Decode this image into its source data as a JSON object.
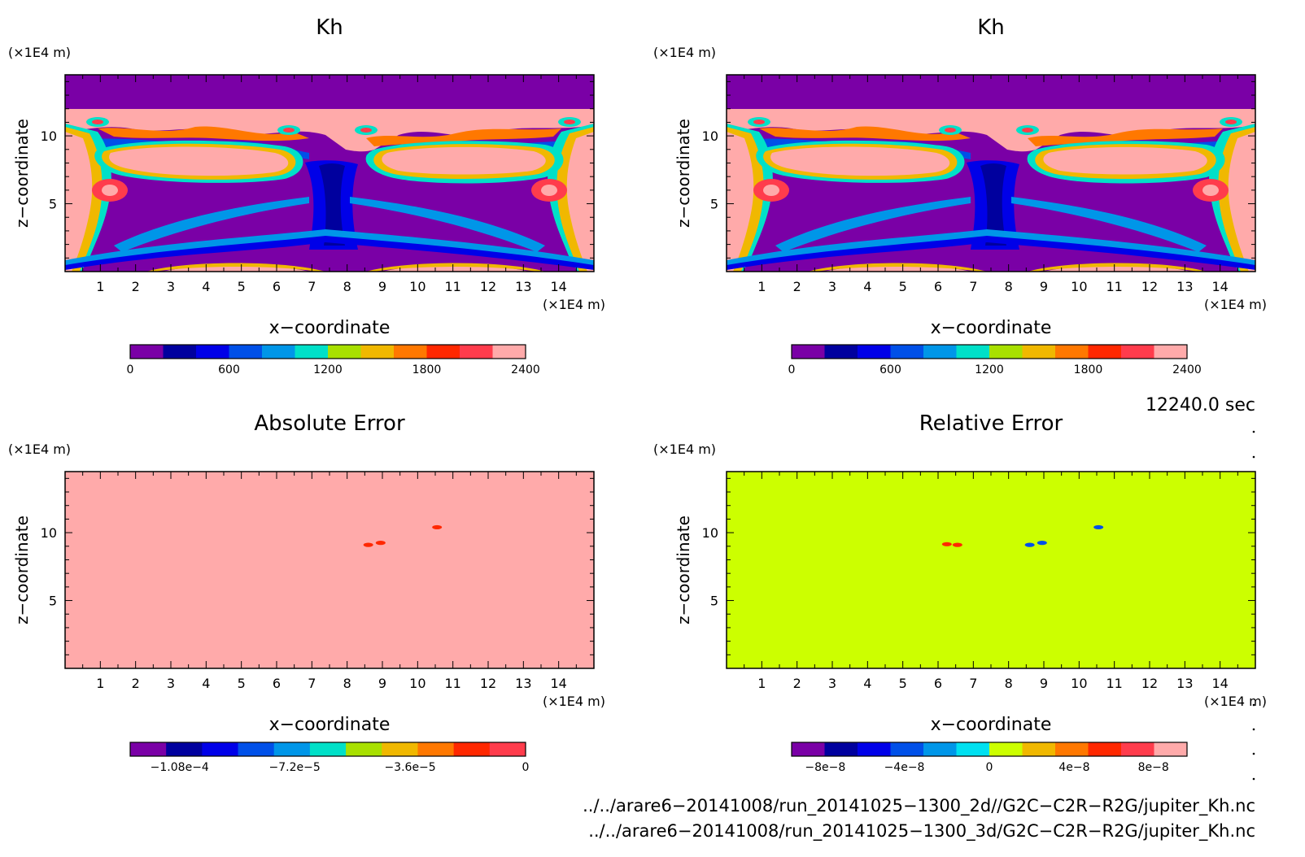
{
  "chart_data": [
    {
      "type": "heatmap",
      "title": "Kh",
      "xlabel": "x−coordinate",
      "ylabel": "z−coordinate",
      "x_unit": "(×1E4 m)",
      "y_unit": "(×1E4 m)",
      "xlim": [
        0,
        15
      ],
      "ylim": [
        0,
        14.5
      ],
      "xticks": [
        "1",
        "2",
        "3",
        "4",
        "5",
        "6",
        "7",
        "8",
        "9",
        "10",
        "11",
        "12",
        "13",
        "14"
      ],
      "yticks": [
        "5",
        "10"
      ],
      "colorbar": {
        "colors": [
          "#7a00a6",
          "#00009e",
          "#0000e8",
          "#0050e8",
          "#0096e8",
          "#00e0c8",
          "#a8e000",
          "#f0b800",
          "#ff7800",
          "#ff2800",
          "#ff3c4c",
          "#ffaaaa"
        ],
        "labels": [
          "0",
          "600",
          "1200",
          "1800",
          "2400"
        ]
      }
    },
    {
      "type": "heatmap",
      "title": "Kh",
      "xlabel": "x−coordinate",
      "ylabel": "z−coordinate",
      "x_unit": "(×1E4 m)",
      "y_unit": "(×1E4 m)",
      "xlim": [
        0,
        15
      ],
      "ylim": [
        0,
        14.5
      ],
      "xticks": [
        "1",
        "2",
        "3",
        "4",
        "5",
        "6",
        "7",
        "8",
        "9",
        "10",
        "11",
        "12",
        "13",
        "14"
      ],
      "yticks": [
        "5",
        "10"
      ],
      "colorbar": {
        "colors": [
          "#7a00a6",
          "#00009e",
          "#0000e8",
          "#0050e8",
          "#0096e8",
          "#00e0c8",
          "#a8e000",
          "#f0b800",
          "#ff7800",
          "#ff2800",
          "#ff3c4c",
          "#ffaaaa"
        ],
        "labels": [
          "0",
          "600",
          "1200",
          "1800",
          "2400"
        ]
      }
    },
    {
      "type": "heatmap",
      "title": "Absolute Error",
      "xlabel": "x−coordinate",
      "ylabel": "z−coordinate",
      "x_unit": "(×1E4 m)",
      "y_unit": "(×1E4 m)",
      "xlim": [
        0,
        15
      ],
      "ylim": [
        0,
        14.5
      ],
      "xticks": [
        "1",
        "2",
        "3",
        "4",
        "5",
        "6",
        "7",
        "8",
        "9",
        "10",
        "11",
        "12",
        "13",
        "14"
      ],
      "yticks": [
        "5",
        "10"
      ],
      "field_color": "#ffaaaa",
      "spots": [
        {
          "x": 8.6,
          "z": 9.1,
          "color": "#ff2800"
        },
        {
          "x": 8.95,
          "z": 9.25,
          "color": "#ff2800"
        },
        {
          "x": 10.55,
          "z": 10.4,
          "color": "#ff2800"
        }
      ],
      "colorbar": {
        "colors": [
          "#7a00a6",
          "#00009e",
          "#0000e8",
          "#0050e8",
          "#0096e8",
          "#00e0c8",
          "#a8e000",
          "#f0b800",
          "#ff7800",
          "#ff2800",
          "#ff3c4c"
        ],
        "labels": [
          "−1.08e−4",
          "−7.2e−5",
          "−3.6e−5",
          "0"
        ]
      }
    },
    {
      "type": "heatmap",
      "title": "Relative Error",
      "xlabel": "x−coordinate",
      "ylabel": "z−coordinate",
      "x_unit": "(×1E4 m)",
      "y_unit": "(×1E4 m)",
      "xlim": [
        0,
        15
      ],
      "ylim": [
        0,
        14.5
      ],
      "xticks": [
        "1",
        "2",
        "3",
        "4",
        "5",
        "6",
        "7",
        "8",
        "9",
        "10",
        "11",
        "12",
        "13",
        "14"
      ],
      "yticks": [
        "5",
        "10"
      ],
      "field_color": "#ccff00",
      "spots": [
        {
          "x": 6.25,
          "z": 9.15,
          "color": "#ff2800"
        },
        {
          "x": 6.55,
          "z": 9.1,
          "color": "#ff2800"
        },
        {
          "x": 8.6,
          "z": 9.1,
          "color": "#0050e8"
        },
        {
          "x": 8.95,
          "z": 9.25,
          "color": "#0050e8"
        },
        {
          "x": 10.55,
          "z": 10.4,
          "color": "#0050e8"
        }
      ],
      "colorbar": {
        "colors": [
          "#7a00a6",
          "#00009e",
          "#0000e8",
          "#0050e8",
          "#0096e8",
          "#00e0f0",
          "#ccff00",
          "#f0b800",
          "#ff7800",
          "#ff2800",
          "#ff3c4c",
          "#ffaaaa"
        ],
        "labels": [
          "−8e−8",
          "−4e−8",
          "0",
          "4e−8",
          "8e−8"
        ]
      }
    }
  ],
  "time_label": "12240.0 sec",
  "file_paths": [
    "../../arare6−20141008/run_20141025−1300_2d//G2C−C2R−R2G/jupiter_Kh.nc",
    "../../arare6−20141008/run_20141025−1300_3d/G2C−C2R−R2G/jupiter_Kh.nc"
  ]
}
